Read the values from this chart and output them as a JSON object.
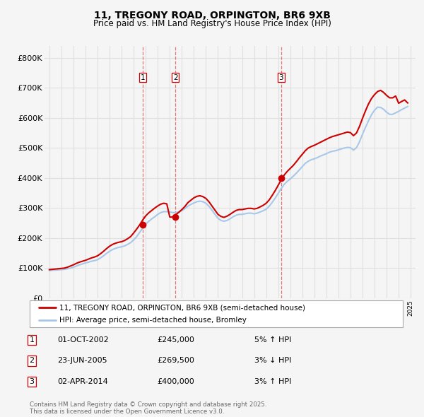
{
  "title_line1": "11, TREGONY ROAD, ORPINGTON, BR6 9XB",
  "title_line2": "Price paid vs. HM Land Registry's House Price Index (HPI)",
  "ylabel_values": [
    "£0",
    "£100K",
    "£200K",
    "£300K",
    "£400K",
    "£500K",
    "£600K",
    "£700K",
    "£800K"
  ],
  "ytick_values": [
    0,
    100000,
    200000,
    300000,
    400000,
    500000,
    600000,
    700000,
    800000
  ],
  "ylim": [
    0,
    840000
  ],
  "xlim_start": 1994.6,
  "xlim_end": 2025.4,
  "legend_line1": "11, TREGONY ROAD, ORPINGTON, BR6 9XB (semi-detached house)",
  "legend_line2": "HPI: Average price, semi-detached house, Bromley",
  "transactions": [
    {
      "num": 1,
      "date": "01-OCT-2002",
      "price": "£245,000",
      "pct": "5%",
      "dir": "↑",
      "year": 2002.75,
      "price_val": 245000
    },
    {
      "num": 2,
      "date": "23-JUN-2005",
      "price": "£269,500",
      "pct": "3%",
      "dir": "↓",
      "year": 2005.47,
      "price_val": 269500
    },
    {
      "num": 3,
      "date": "02-APR-2014",
      "price": "£400,000",
      "pct": "3%",
      "dir": "↑",
      "year": 2014.25,
      "price_val": 400000
    }
  ],
  "hpi_color": "#a8c8e8",
  "price_color": "#cc0000",
  "vline_color": "#e06060",
  "dot_color": "#cc0000",
  "grid_color": "#e0e0e0",
  "background_color": "#f5f5f5",
  "hpi_data": {
    "years": [
      1995.0,
      1995.25,
      1995.5,
      1995.75,
      1996.0,
      1996.25,
      1996.5,
      1996.75,
      1997.0,
      1997.25,
      1997.5,
      1997.75,
      1998.0,
      1998.25,
      1998.5,
      1998.75,
      1999.0,
      1999.25,
      1999.5,
      1999.75,
      2000.0,
      2000.25,
      2000.5,
      2000.75,
      2001.0,
      2001.25,
      2001.5,
      2001.75,
      2002.0,
      2002.25,
      2002.5,
      2002.75,
      2003.0,
      2003.25,
      2003.5,
      2003.75,
      2004.0,
      2004.25,
      2004.5,
      2004.75,
      2005.0,
      2005.25,
      2005.5,
      2005.75,
      2006.0,
      2006.25,
      2006.5,
      2006.75,
      2007.0,
      2007.25,
      2007.5,
      2007.75,
      2008.0,
      2008.25,
      2008.5,
      2008.75,
      2009.0,
      2009.25,
      2009.5,
      2009.75,
      2010.0,
      2010.25,
      2010.5,
      2010.75,
      2011.0,
      2011.25,
      2011.5,
      2011.75,
      2012.0,
      2012.25,
      2012.5,
      2012.75,
      2013.0,
      2013.25,
      2013.5,
      2013.75,
      2014.0,
      2014.25,
      2014.5,
      2014.75,
      2015.0,
      2015.25,
      2015.5,
      2015.75,
      2016.0,
      2016.25,
      2016.5,
      2016.75,
      2017.0,
      2017.25,
      2017.5,
      2017.75,
      2018.0,
      2018.25,
      2018.5,
      2018.75,
      2019.0,
      2019.25,
      2019.5,
      2019.75,
      2020.0,
      2020.25,
      2020.5,
      2020.75,
      2021.0,
      2021.25,
      2021.5,
      2021.75,
      2022.0,
      2022.25,
      2022.5,
      2022.75,
      2023.0,
      2023.25,
      2023.5,
      2023.75,
      2024.0,
      2024.25,
      2024.5,
      2024.75
    ],
    "values": [
      92000,
      93000,
      93500,
      94000,
      95000,
      96000,
      98000,
      100000,
      103000,
      107000,
      111000,
      114000,
      117000,
      120000,
      123000,
      125000,
      128000,
      134000,
      141000,
      149000,
      156000,
      162000,
      166000,
      169000,
      171000,
      174000,
      179000,
      185000,
      194000,
      205000,
      219000,
      233000,
      246000,
      256000,
      264000,
      271000,
      279000,
      285000,
      288000,
      288000,
      287000,
      285000,
      285000,
      287000,
      291000,
      298000,
      306000,
      312000,
      317000,
      321000,
      323000,
      321000,
      316000,
      306000,
      293000,
      279000,
      266000,
      259000,
      256000,
      259000,
      264000,
      271000,
      276000,
      279000,
      279000,
      281000,
      283000,
      283000,
      281000,
      283000,
      287000,
      291000,
      296000,
      306000,
      319000,
      333000,
      349000,
      365000,
      379000,
      389000,
      397000,
      406000,
      416000,
      427000,
      438000,
      449000,
      456000,
      461000,
      464000,
      468000,
      473000,
      477000,
      481000,
      486000,
      489000,
      491000,
      494000,
      497000,
      500000,
      502000,
      501000,
      493000,
      501000,
      521000,
      546000,
      569000,
      591000,
      611000,
      626000,
      636000,
      635000,
      629000,
      619000,
      612000,
      612000,
      617000,
      622000,
      628000,
      633000,
      638000
    ]
  },
  "price_data": {
    "years": [
      1995.0,
      1995.25,
      1995.5,
      1995.75,
      1996.0,
      1996.25,
      1996.5,
      1996.75,
      1997.0,
      1997.25,
      1997.5,
      1997.75,
      1998.0,
      1998.25,
      1998.5,
      1998.75,
      1999.0,
      1999.25,
      1999.5,
      1999.75,
      2000.0,
      2000.25,
      2000.5,
      2000.75,
      2001.0,
      2001.25,
      2001.5,
      2001.75,
      2002.0,
      2002.25,
      2002.5,
      2002.75,
      2003.0,
      2003.25,
      2003.5,
      2003.75,
      2004.0,
      2004.25,
      2004.5,
      2004.75,
      2005.0,
      2005.25,
      2005.5,
      2005.75,
      2006.0,
      2006.25,
      2006.5,
      2006.75,
      2007.0,
      2007.25,
      2007.5,
      2007.75,
      2008.0,
      2008.25,
      2008.5,
      2008.75,
      2009.0,
      2009.25,
      2009.5,
      2009.75,
      2010.0,
      2010.25,
      2010.5,
      2010.75,
      2011.0,
      2011.25,
      2011.5,
      2011.75,
      2012.0,
      2012.25,
      2012.5,
      2012.75,
      2013.0,
      2013.25,
      2013.5,
      2013.75,
      2014.0,
      2014.25,
      2014.5,
      2014.75,
      2015.0,
      2015.25,
      2015.5,
      2015.75,
      2016.0,
      2016.25,
      2016.5,
      2016.75,
      2017.0,
      2017.25,
      2017.5,
      2017.75,
      2018.0,
      2018.25,
      2018.5,
      2018.75,
      2019.0,
      2019.25,
      2019.5,
      2019.75,
      2020.0,
      2020.25,
      2020.5,
      2020.75,
      2021.0,
      2021.25,
      2021.5,
      2021.75,
      2022.0,
      2022.25,
      2022.5,
      2022.75,
      2023.0,
      2023.25,
      2023.5,
      2023.75,
      2024.0,
      2024.25,
      2024.5,
      2024.75
    ],
    "values": [
      95000,
      96000,
      97000,
      98000,
      99000,
      100000,
      103000,
      107000,
      111000,
      116000,
      120000,
      123000,
      126000,
      130000,
      134000,
      137000,
      141000,
      148000,
      156000,
      165000,
      173000,
      179000,
      183000,
      186000,
      188000,
      192000,
      198000,
      205000,
      217000,
      230000,
      244000,
      260000,
      274000,
      284000,
      292000,
      300000,
      307000,
      313000,
      316000,
      314000,
      270000,
      270000,
      278000,
      286000,
      295000,
      305000,
      318000,
      326000,
      334000,
      339000,
      341000,
      338000,
      332000,
      321000,
      307000,
      293000,
      279000,
      272000,
      269000,
      273000,
      279000,
      286000,
      292000,
      295000,
      295000,
      297000,
      299000,
      299000,
      297000,
      299000,
      304000,
      309000,
      316000,
      327000,
      342000,
      358000,
      376000,
      394000,
      410000,
      422000,
      432000,
      442000,
      454000,
      467000,
      479000,
      491000,
      500000,
      505000,
      509000,
      514000,
      519000,
      524000,
      529000,
      534000,
      538000,
      541000,
      544000,
      547000,
      550000,
      553000,
      551000,
      541000,
      550000,
      572000,
      599000,
      624000,
      647000,
      665000,
      678000,
      688000,
      692000,
      685000,
      675000,
      667000,
      667000,
      673000,
      649000,
      655000,
      660000,
      650000
    ]
  },
  "footnote": "Contains HM Land Registry data © Crown copyright and database right 2025.\nThis data is licensed under the Open Government Licence v3.0."
}
